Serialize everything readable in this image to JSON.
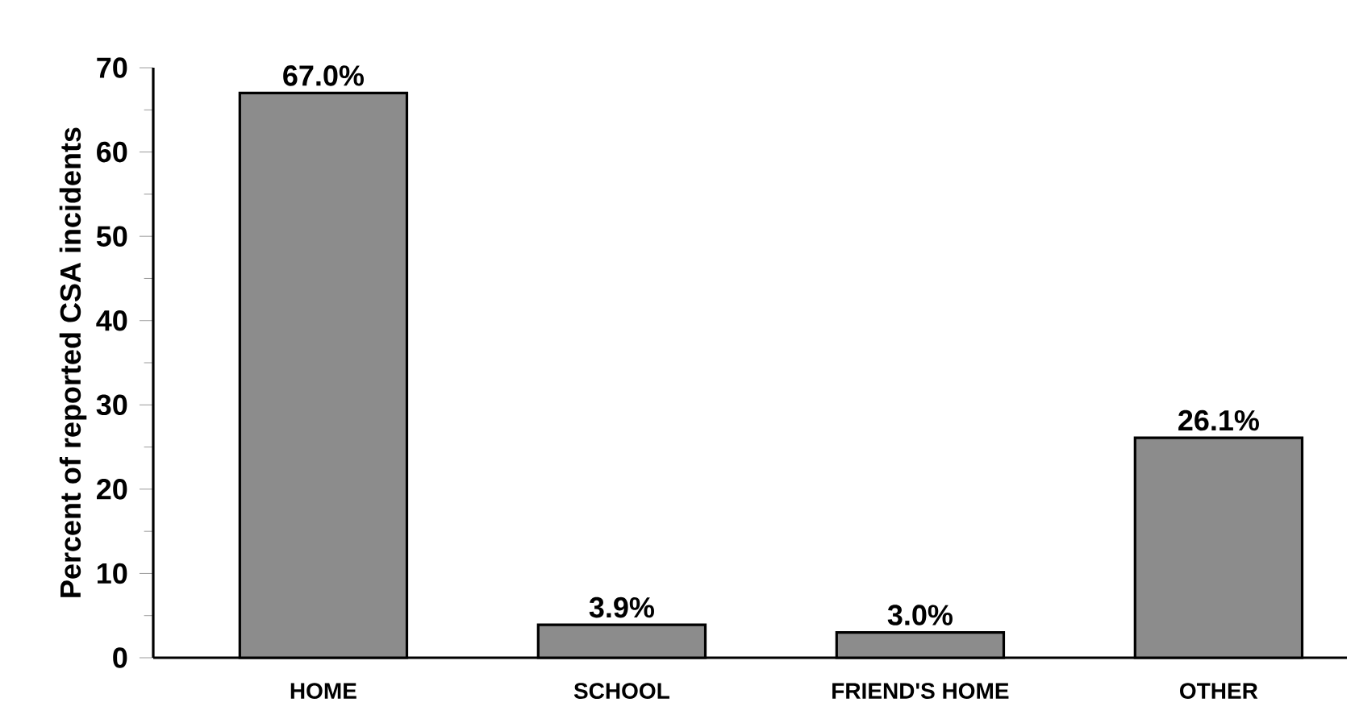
{
  "chart_data": {
    "type": "bar",
    "ylabel": "Percent of reported CSA incidents",
    "categories": [
      "HOME",
      "SCHOOL",
      "FRIEND'S HOME",
      "OTHER"
    ],
    "values": [
      67.0,
      3.9,
      3.0,
      26.1
    ],
    "value_labels": [
      "67.0%",
      "3.9%",
      "3.0%",
      "26.1%"
    ],
    "color": "#8c8c8c",
    "ylim": [
      0,
      70
    ],
    "yticks": [
      0,
      10,
      20,
      30,
      40,
      50,
      60,
      70
    ]
  }
}
